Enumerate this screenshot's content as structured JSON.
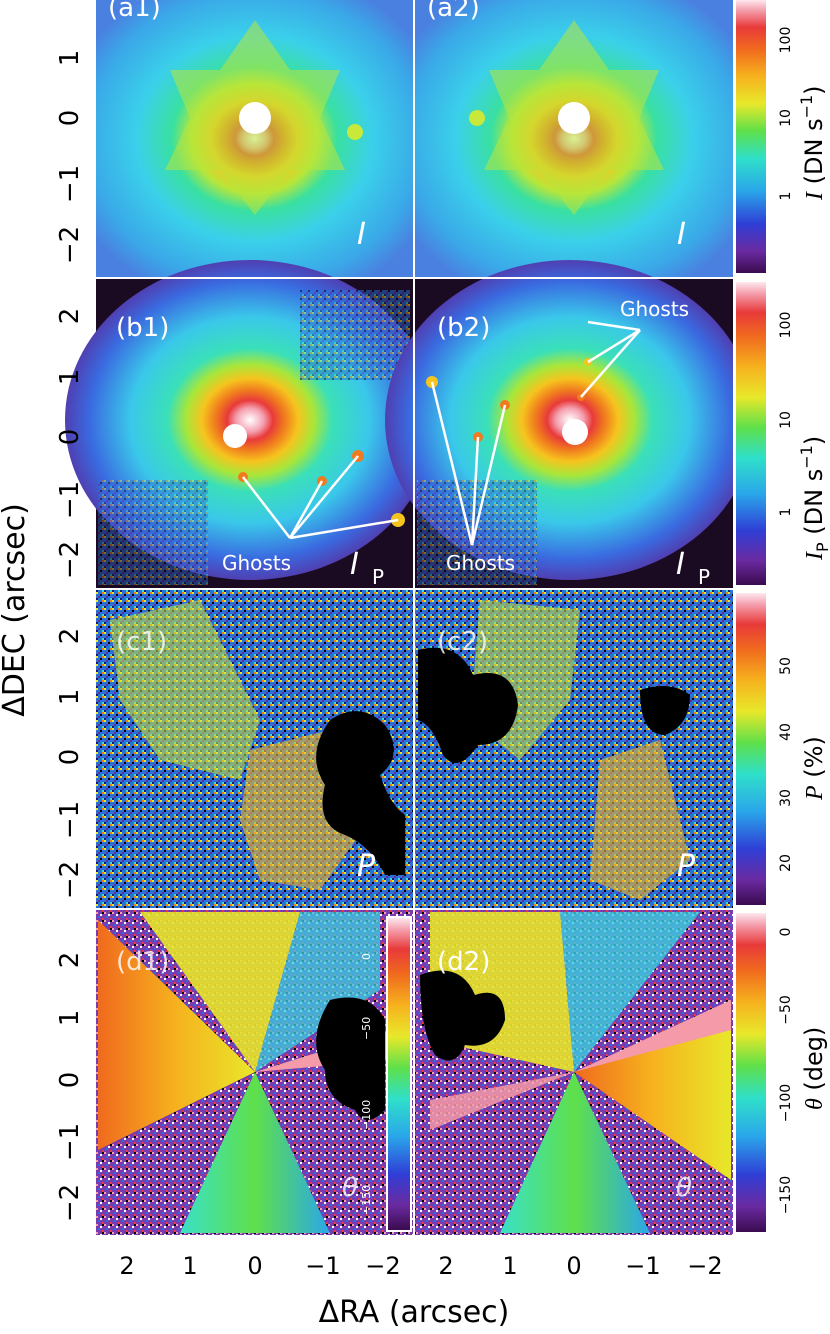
{
  "figure": {
    "x_axis_label": "ΔRA (arcsec)",
    "y_axis_label": "ΔDEC (arcsec)",
    "x_ticks": [
      "2",
      "1",
      "0",
      "−1",
      "−2"
    ],
    "y_ticks": [
      "2",
      "1",
      "0",
      "−1",
      "−2"
    ],
    "colors": {
      "frame": "#ffffff",
      "tick_text": "#000000",
      "panel_label": "#ffffff",
      "ghost_lines": "#ffffff",
      "masked": "#000000"
    }
  },
  "rows": [
    {
      "row_key": "a",
      "panels": [
        {
          "label": "(a1)",
          "quantity": "I",
          "quantity_sub": ""
        },
        {
          "label": "(a2)",
          "quantity": "I",
          "quantity_sub": ""
        }
      ],
      "colorbar": {
        "title_main": "I",
        "title_units": "(DN s",
        "title_exp": "−1",
        "title_close": ")",
        "scale": "log",
        "ticks": [
          "100",
          "10",
          "1"
        ]
      }
    },
    {
      "row_key": "b",
      "panels": [
        {
          "label": "(b1)",
          "quantity": "I",
          "quantity_sub": "P",
          "ghost_label": "Ghosts"
        },
        {
          "label": "(b2)",
          "quantity": "I",
          "quantity_sub": "P",
          "ghost_label": "Ghosts",
          "ghost_label_2": "Ghosts"
        }
      ],
      "colorbar": {
        "title_main": "I",
        "title_sub": "P",
        "title_units": "(DN s",
        "title_exp": "−1",
        "title_close": ")",
        "scale": "log",
        "ticks": [
          "100",
          "10",
          "1"
        ]
      }
    },
    {
      "row_key": "c",
      "panels": [
        {
          "label": "(c1)",
          "quantity": "P",
          "quantity_sub": ""
        },
        {
          "label": "(c2)",
          "quantity": "P",
          "quantity_sub": ""
        }
      ],
      "colorbar": {
        "title_main": "P",
        "title_units": "(%)",
        "scale": "linear",
        "ticks": [
          "50",
          "40",
          "30",
          "20"
        ]
      }
    },
    {
      "row_key": "d",
      "panels": [
        {
          "label": "(d1)",
          "quantity": "θ",
          "quantity_sub": ""
        },
        {
          "label": "(d2)",
          "quantity": "θ",
          "quantity_sub": ""
        }
      ],
      "colorbar": {
        "title_main": "θ",
        "title_units": "(deg)",
        "scale": "linear",
        "ticks": [
          "0",
          "−50",
          "−100",
          "−150"
        ]
      },
      "inset_colorbar_ticks": [
        "0",
        "−50",
        "−100",
        "−150"
      ]
    }
  ]
}
